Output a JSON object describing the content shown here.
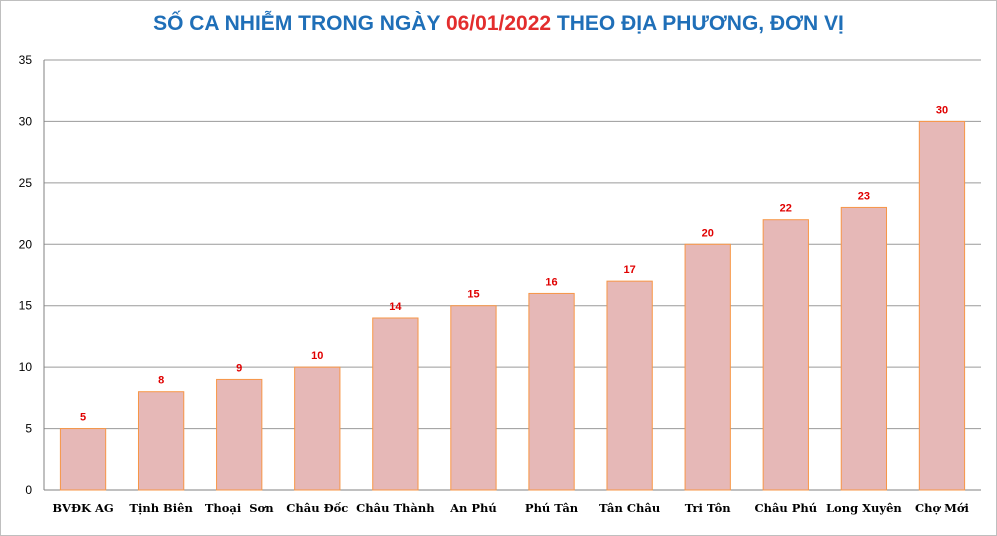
{
  "chart_data": {
    "type": "bar",
    "title_prefix": "SỐ CA NHIỄM TRONG NGÀY",
    "title_date": "06/01/2022",
    "title_suffix": "THEO ĐỊA PHƯƠNG, ĐƠN VỊ",
    "categories": [
      "BVĐK AG",
      "Tịnh Biên",
      "Thoại  Sơn",
      "Châu Đốc",
      "Châu Thành",
      "An Phú",
      "Phú Tân",
      "Tân Châu",
      "Tri Tôn",
      "Châu Phú",
      "Long Xuyên",
      "Chợ Mới"
    ],
    "values": [
      5,
      8,
      9,
      10,
      14,
      15,
      16,
      17,
      20,
      22,
      23,
      30
    ],
    "yticks": [
      0,
      5,
      10,
      15,
      20,
      25,
      30,
      35
    ],
    "ylim": [
      0,
      35
    ],
    "grid": true,
    "legend": "none",
    "colors": {
      "bar_fill": "#e6b8b7",
      "bar_edge": "#f79646",
      "data_label": "#e00000",
      "title": "#1f6fb8",
      "title_date": "#e32d2d",
      "grid": "#9a9a9a"
    }
  }
}
